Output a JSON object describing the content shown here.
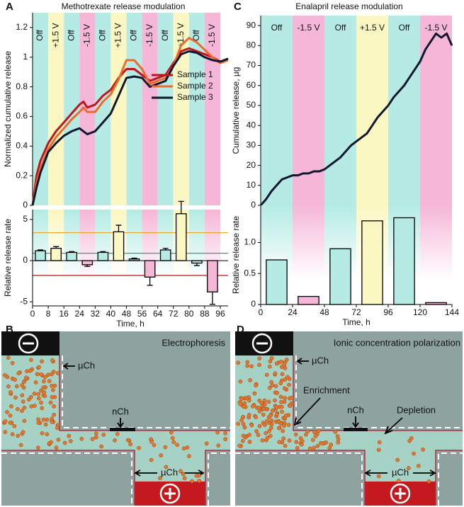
{
  "chart_data": [
    {
      "type": "line",
      "panel": "A",
      "title": "Methotrexate release modulation",
      "ylabel": "Normalized cumulative release",
      "xlim": [
        0,
        100
      ],
      "ylim": [
        0,
        1.3
      ],
      "yticks": [
        0,
        0.2,
        0.4,
        0.6,
        0.8,
        1,
        1.2
      ],
      "bands": [
        {
          "label": "Off",
          "start": 0,
          "end": 8,
          "color": "#b5ebe4"
        },
        {
          "label": "+1.5 V",
          "start": 8,
          "end": 16,
          "color": "#fbf7c2"
        },
        {
          "label": "Off",
          "start": 16,
          "end": 24,
          "color": "#b5ebe4"
        },
        {
          "label": "-1.5 V",
          "start": 24,
          "end": 32,
          "color": "#f6b6d7"
        },
        {
          "label": "Off",
          "start": 32,
          "end": 40,
          "color": "#b5ebe4"
        },
        {
          "label": "+1.5 V",
          "start": 40,
          "end": 48,
          "color": "#fbf7c2"
        },
        {
          "label": "Off",
          "start": 48,
          "end": 56,
          "color": "#b5ebe4"
        },
        {
          "label": "-1.5 V",
          "start": 56,
          "end": 64,
          "color": "#f6b6d7"
        },
        {
          "label": "Off",
          "start": 64,
          "end": 72,
          "color": "#b5ebe4"
        },
        {
          "label": "+1.5 V",
          "start": 72,
          "end": 80,
          "color": "#fbf7c2"
        },
        {
          "label": "Off",
          "start": 80,
          "end": 88,
          "color": "#b5ebe4"
        },
        {
          "label": "-1.5 V",
          "start": 88,
          "end": 96,
          "color": "#f6b6d7"
        }
      ],
      "x": [
        0,
        2,
        4,
        8,
        12,
        16,
        20,
        24,
        26,
        28,
        32,
        36,
        40,
        44,
        48,
        52,
        56,
        60,
        64,
        68,
        72,
        76,
        80,
        84,
        88,
        92,
        96,
        100
      ],
      "series": [
        {
          "name": "Sample 1",
          "color": "#c0161b",
          "values": [
            0,
            0.2,
            0.3,
            0.42,
            0.5,
            0.56,
            0.62,
            0.68,
            0.7,
            0.66,
            0.68,
            0.74,
            0.78,
            0.86,
            0.92,
            0.92,
            0.88,
            0.84,
            0.86,
            0.88,
            0.96,
            1.04,
            1.06,
            1.04,
            1.02,
            1.0,
            0.97,
            0.99
          ]
        },
        {
          "name": "Sample 2",
          "color": "#ee6a2a",
          "values": [
            0,
            0.15,
            0.25,
            0.38,
            0.46,
            0.52,
            0.58,
            0.63,
            0.66,
            0.63,
            0.63,
            0.7,
            0.75,
            0.85,
            0.98,
            0.98,
            0.92,
            0.82,
            0.84,
            0.86,
            0.94,
            1.08,
            1.13,
            1.1,
            1.05,
            1.0,
            0.96,
            0.98
          ]
        },
        {
          "name": "Sample 3",
          "color": "#101830",
          "values": [
            0,
            0.12,
            0.22,
            0.36,
            0.42,
            0.47,
            0.5,
            0.52,
            0.5,
            0.48,
            0.5,
            0.56,
            0.62,
            0.74,
            0.86,
            0.87,
            0.86,
            0.8,
            0.82,
            0.84,
            0.94,
            1.02,
            1.04,
            1.03,
            1.0,
            0.98,
            0.97,
            0.99
          ]
        }
      ],
      "legend": "center-right"
    },
    {
      "type": "bar",
      "ylabel": "Relative release rate",
      "xlabel": "Time, h",
      "xlim": [
        0,
        100
      ],
      "ylim": [
        -5.5,
        6.2
      ],
      "yticks": [
        -5,
        0,
        5
      ],
      "xticks": [
        0,
        8,
        16,
        24,
        32,
        40,
        48,
        56,
        64,
        72,
        80,
        88,
        96
      ],
      "x": [
        4,
        12,
        20,
        28,
        36,
        44,
        52,
        60,
        68,
        76,
        84,
        92
      ],
      "values": [
        1.2,
        1.5,
        1.0,
        -0.5,
        1.0,
        3.5,
        0.2,
        -2.0,
        1.3,
        5.7,
        -0.3,
        -3.8
      ],
      "errors": [
        0.1,
        0.2,
        0.1,
        0.2,
        0.1,
        0.8,
        0.1,
        1.0,
        0.2,
        1.5,
        0.3,
        1.5
      ],
      "colors": [
        "#b5ebe4",
        "#fbf7c2",
        "#b5ebe4",
        "#f6b6d7",
        "#b5ebe4",
        "#fbf7c2",
        "#b5ebe4",
        "#f6b6d7",
        "#b5ebe4",
        "#fbf7c2",
        "#b5ebe4",
        "#f6b6d7"
      ],
      "reference_lines": [
        {
          "value": 3.4,
          "color": "#e6a62e"
        },
        {
          "value": 0.9,
          "color": "#2aa58a"
        },
        {
          "value": -1.8,
          "color": "#c0161b"
        }
      ]
    },
    {
      "type": "line",
      "panel": "C",
      "title": "Enalapril release modulation",
      "ylabel": "Cumulative release, µg",
      "xlim": [
        0,
        144
      ],
      "ylim": [
        0,
        95
      ],
      "yticks": [
        0,
        10,
        20,
        30,
        40,
        50,
        60,
        70,
        80,
        90
      ],
      "bands": [
        {
          "label": "Off",
          "start": 0,
          "end": 24,
          "color": "#b5ebe4"
        },
        {
          "label": "-1.5 V",
          "start": 24,
          "end": 48,
          "color": "#f6b6d7"
        },
        {
          "label": "Off",
          "start": 48,
          "end": 72,
          "color": "#b5ebe4"
        },
        {
          "label": "+1.5 V",
          "start": 72,
          "end": 96,
          "color": "#fbf7c2"
        },
        {
          "label": "Off",
          "start": 96,
          "end": 120,
          "color": "#b5ebe4"
        },
        {
          "label": "-1.5 V",
          "start": 120,
          "end": 144,
          "color": "#f6b6d7"
        }
      ],
      "x": [
        0,
        4,
        8,
        12,
        16,
        20,
        24,
        28,
        32,
        36,
        40,
        44,
        48,
        52,
        56,
        60,
        64,
        68,
        72,
        76,
        80,
        84,
        88,
        92,
        96,
        100,
        104,
        108,
        112,
        116,
        120,
        124,
        128,
        132,
        136,
        140,
        144
      ],
      "values": [
        0,
        3,
        7,
        10,
        13,
        14,
        15,
        15,
        16,
        16,
        17,
        17,
        18,
        20,
        22,
        24,
        27,
        30,
        32,
        34,
        36,
        40,
        44,
        47,
        50,
        54,
        57,
        60,
        64,
        68,
        72,
        78,
        82,
        86,
        84,
        86,
        80
      ],
      "color": "#101830"
    },
    {
      "type": "bar",
      "ylabel": "Relative release rate",
      "xlabel": "Time, h",
      "xlim": [
        0,
        144
      ],
      "ylim": [
        0,
        1.6
      ],
      "yticks": [
        0,
        0.5,
        {
          "value": 1,
          "label": "1.0"
        }
      ],
      "xticks": [
        0,
        24,
        48,
        72,
        96,
        120,
        144
      ],
      "x": [
        12,
        36,
        60,
        84,
        108,
        132
      ],
      "values": [
        0.72,
        0.13,
        0.9,
        1.35,
        1.4,
        0.03
      ],
      "colors": [
        "#b5ebe4",
        "#f6b6d7",
        "#b5ebe4",
        "#fbf7c2",
        "#b5ebe4",
        "#f6b6d7"
      ]
    }
  ],
  "diagrams": [
    {
      "label": "B",
      "title": "Electrophoresis",
      "annotations": [
        "µCh",
        "nCh",
        "µCh"
      ]
    },
    {
      "label": "D",
      "title": "Ionic concentration polarization",
      "annotations": [
        "µCh",
        "Enrichment",
        "nCh",
        "Depletion",
        "µCh"
      ]
    }
  ]
}
